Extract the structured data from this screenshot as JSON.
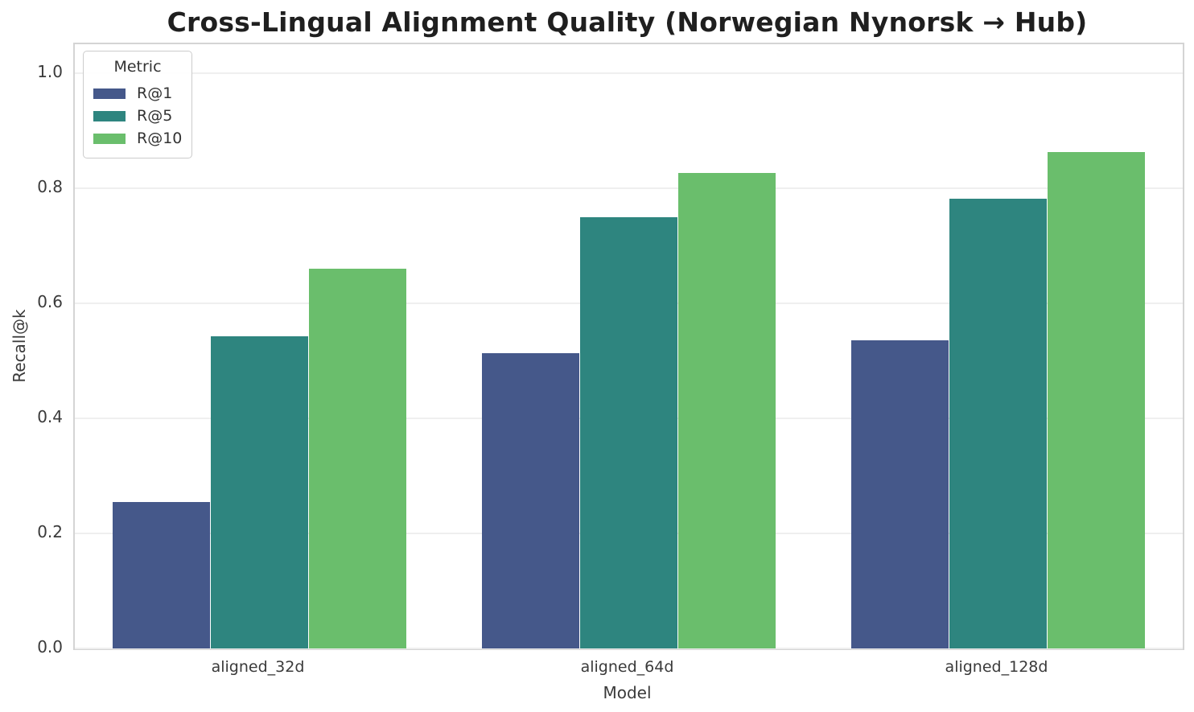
{
  "title": "Cross-Lingual Alignment Quality (Norwegian Nynorsk → Hub)",
  "chart_data": {
    "type": "bar",
    "categories": [
      "aligned_32d",
      "aligned_64d",
      "aligned_128d"
    ],
    "series": [
      {
        "name": "R@1",
        "color": "#45588A",
        "values": [
          0.255,
          0.513,
          0.535
        ]
      },
      {
        "name": "R@5",
        "color": "#2E857F",
        "values": [
          0.542,
          0.75,
          0.781
        ]
      },
      {
        "name": "R@10",
        "color": "#6ABE6C",
        "values": [
          0.66,
          0.826,
          0.863
        ]
      }
    ],
    "xlabel": "Model",
    "ylabel": "Recall@k",
    "ylim": [
      0,
      1.05
    ],
    "yticks": [
      0.0,
      0.2,
      0.4,
      0.6,
      0.8,
      1.0
    ],
    "legend_title": "Metric",
    "legend_position": "upper-left",
    "grid": true,
    "bar_group_width_fraction": 0.8
  },
  "style": {
    "grid_color": "#efefef",
    "spine_color": "#d4d4d4",
    "text_color": "#3a3a3a",
    "title_color": "#1f1f1f",
    "background": "#ffffff"
  }
}
